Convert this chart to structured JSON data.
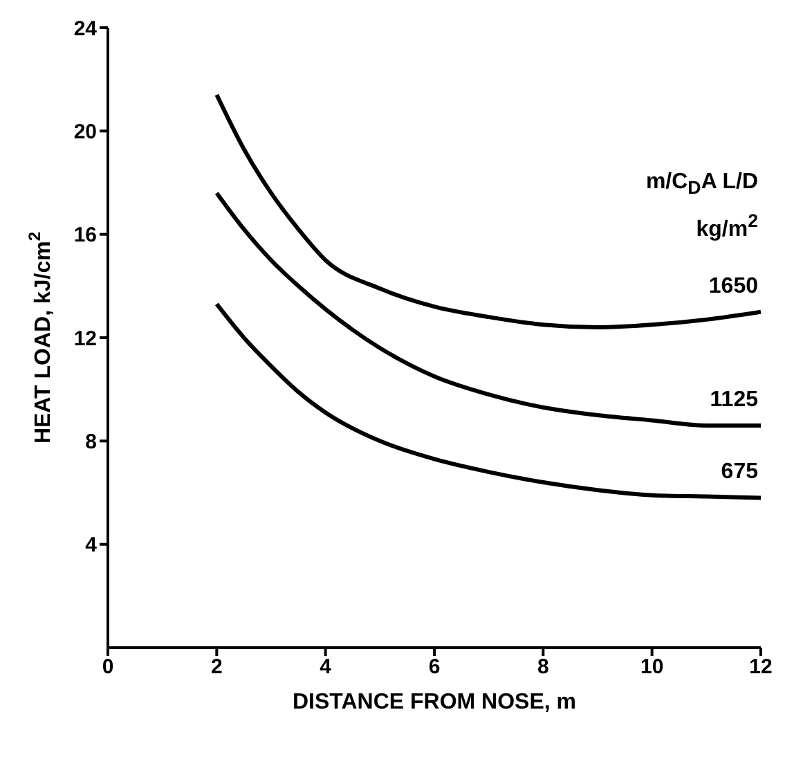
{
  "chart_data": {
    "type": "line",
    "xlabel": "DISTANCE FROM NOSE, m",
    "ylabel": "HEAT LOAD, kJ/cm$^{2}$",
    "legend_title": "m/C$_{D}$A  L/D\nkg/m$^{2}$",
    "x": [
      2,
      2.5,
      3,
      3.5,
      4,
      5,
      6,
      7,
      8,
      9,
      10,
      11,
      12
    ],
    "xlim": [
      0,
      12
    ],
    "xticks": [
      0,
      2,
      4,
      6,
      8,
      10,
      12
    ],
    "ylim": [
      0,
      24
    ],
    "yticks": [
      4,
      8,
      12,
      16,
      20,
      24
    ],
    "grid": false,
    "legend": false,
    "marker": "none",
    "line_style": "solid",
    "series": [
      {
        "name": "1650",
        "color": "#000000",
        "values": [
          21.4,
          19.3,
          17.6,
          16.2,
          15.0,
          13.9,
          13.2,
          12.8,
          12.5,
          12.4,
          12.5,
          12.7,
          13.0
        ]
      },
      {
        "name": "1125",
        "color": "#000000",
        "values": [
          17.6,
          16.2,
          15.0,
          14.0,
          13.1,
          11.6,
          10.5,
          9.8,
          9.3,
          9.0,
          8.8,
          8.6,
          8.6
        ]
      },
      {
        "name": "675",
        "color": "#000000",
        "values": [
          13.3,
          12.0,
          10.9,
          9.9,
          9.1,
          8.0,
          7.3,
          6.8,
          6.4,
          6.1,
          5.9,
          5.85,
          5.8
        ]
      }
    ]
  }
}
